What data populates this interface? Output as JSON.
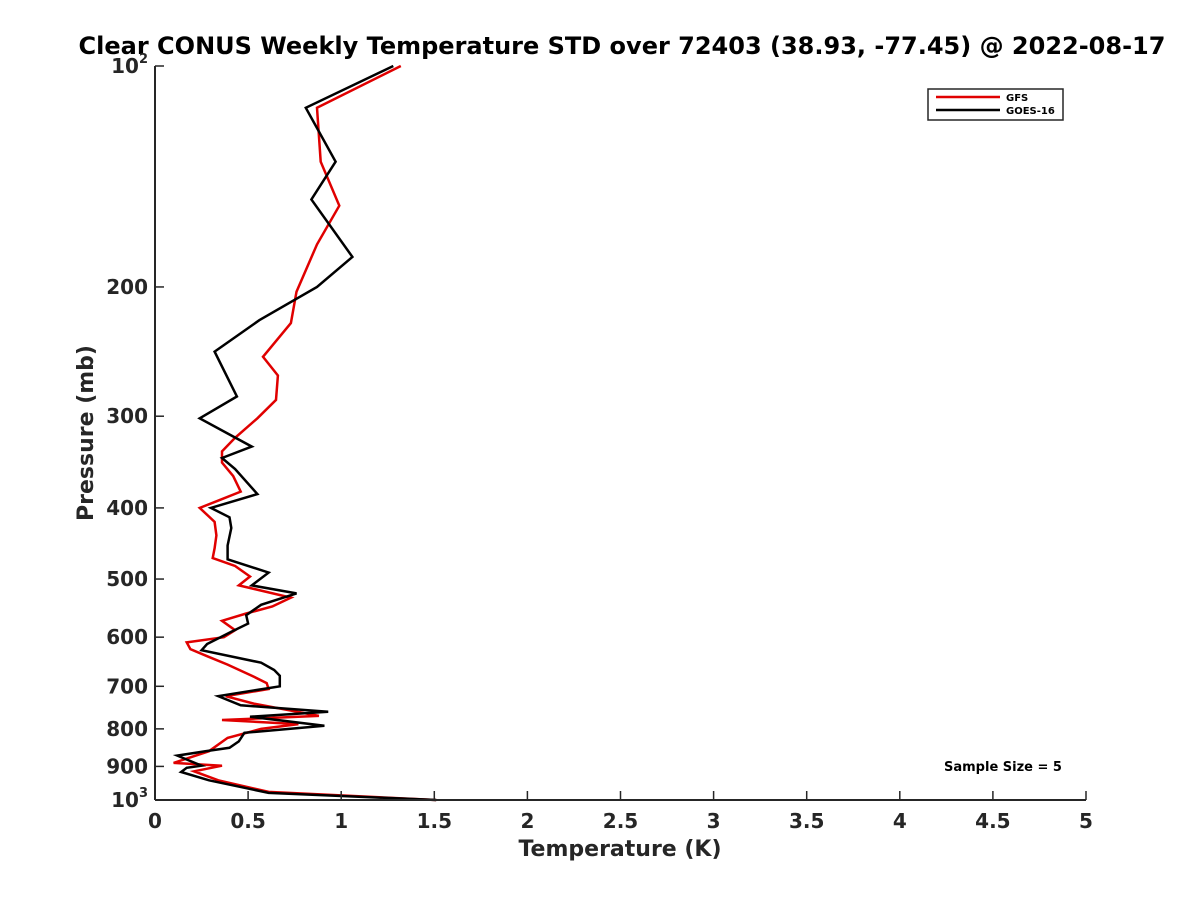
{
  "chart_data": {
    "type": "line",
    "title": "Clear CONUS Weekly Temperature STD over 72403 (38.93, -77.45) @ 2022-08-17",
    "xlabel": "Temperature (K)",
    "ylabel": "Pressure (mb)",
    "xlim": [
      0,
      5
    ],
    "ylim": [
      100,
      1000
    ],
    "y_scale": "log",
    "y_reversed": true,
    "grid": false,
    "legend_position": "top-right",
    "x_ticks": [
      {
        "value": 0,
        "label": "0"
      },
      {
        "value": 0.5,
        "label": "0.5"
      },
      {
        "value": 1,
        "label": "1"
      },
      {
        "value": 1.5,
        "label": "1.5"
      },
      {
        "value": 2,
        "label": "2"
      },
      {
        "value": 2.5,
        "label": "2.5"
      },
      {
        "value": 3,
        "label": "3"
      },
      {
        "value": 3.5,
        "label": "3.5"
      },
      {
        "value": 4,
        "label": "4"
      },
      {
        "value": 4.5,
        "label": "4.5"
      },
      {
        "value": 5,
        "label": "5"
      }
    ],
    "y_ticks": [
      {
        "value": 100,
        "base": "10",
        "exp": "2"
      },
      {
        "value": 200,
        "base": "200",
        "exp": ""
      },
      {
        "value": 300,
        "base": "300",
        "exp": ""
      },
      {
        "value": 400,
        "base": "400",
        "exp": ""
      },
      {
        "value": 500,
        "base": "500",
        "exp": ""
      },
      {
        "value": 600,
        "base": "600",
        "exp": ""
      },
      {
        "value": 700,
        "base": "700",
        "exp": ""
      },
      {
        "value": 800,
        "base": "800",
        "exp": ""
      },
      {
        "value": 900,
        "base": "900",
        "exp": ""
      },
      {
        "value": 1000,
        "base": "10",
        "exp": "3"
      }
    ],
    "series": [
      {
        "name": "GFS",
        "color": "#e00000",
        "points": [
          [
            1.32,
            100
          ],
          [
            0.87,
            114
          ],
          [
            0.89,
            135
          ],
          [
            0.99,
            155
          ],
          [
            0.87,
            175
          ],
          [
            0.76,
            203
          ],
          [
            0.73,
            224
          ],
          [
            0.58,
            249
          ],
          [
            0.66,
            264
          ],
          [
            0.65,
            285
          ],
          [
            0.55,
            302
          ],
          [
            0.43,
            321
          ],
          [
            0.36,
            335
          ],
          [
            0.36,
            347
          ],
          [
            0.42,
            362
          ],
          [
            0.46,
            380
          ],
          [
            0.35,
            390
          ],
          [
            0.24,
            400
          ],
          [
            0.32,
            418
          ],
          [
            0.33,
            436
          ],
          [
            0.32,
            454
          ],
          [
            0.31,
            468
          ],
          [
            0.43,
            480
          ],
          [
            0.51,
            496
          ],
          [
            0.45,
            510
          ],
          [
            0.73,
            530
          ],
          [
            0.63,
            545
          ],
          [
            0.49,
            557
          ],
          [
            0.36,
            570
          ],
          [
            0.43,
            587
          ],
          [
            0.37,
            600
          ],
          [
            0.17,
            610
          ],
          [
            0.19,
            623
          ],
          [
            0.28,
            637
          ],
          [
            0.39,
            654
          ],
          [
            0.52,
            677
          ],
          [
            0.6,
            693
          ],
          [
            0.61,
            706
          ],
          [
            0.38,
            722
          ],
          [
            0.53,
            739
          ],
          [
            0.88,
            768
          ],
          [
            0.36,
            778
          ],
          [
            0.77,
            788
          ],
          [
            0.57,
            800
          ],
          [
            0.39,
            823
          ],
          [
            0.29,
            858
          ],
          [
            0.1,
            890
          ],
          [
            0.36,
            898
          ],
          [
            0.21,
            914
          ],
          [
            0.34,
            940
          ],
          [
            0.61,
            975
          ],
          [
            1.51,
            1000
          ]
        ]
      },
      {
        "name": "GOES-16",
        "color": "#000000",
        "points": [
          [
            1.28,
            100
          ],
          [
            0.81,
            114
          ],
          [
            0.97,
            135
          ],
          [
            0.84,
            152
          ],
          [
            1.06,
            182
          ],
          [
            0.87,
            200
          ],
          [
            0.56,
            222
          ],
          [
            0.32,
            245
          ],
          [
            0.44,
            282
          ],
          [
            0.24,
            302
          ],
          [
            0.52,
            330
          ],
          [
            0.36,
            342
          ],
          [
            0.43,
            354
          ],
          [
            0.55,
            383
          ],
          [
            0.3,
            400
          ],
          [
            0.4,
            412
          ],
          [
            0.41,
            426
          ],
          [
            0.39,
            450
          ],
          [
            0.39,
            470
          ],
          [
            0.61,
            490
          ],
          [
            0.52,
            510
          ],
          [
            0.76,
            523
          ],
          [
            0.57,
            542
          ],
          [
            0.49,
            560
          ],
          [
            0.5,
            575
          ],
          [
            0.41,
            590
          ],
          [
            0.28,
            613
          ],
          [
            0.25,
            625
          ],
          [
            0.57,
            650
          ],
          [
            0.64,
            665
          ],
          [
            0.67,
            677
          ],
          [
            0.67,
            700
          ],
          [
            0.34,
            722
          ],
          [
            0.46,
            743
          ],
          [
            0.93,
            758
          ],
          [
            0.51,
            770
          ],
          [
            0.91,
            792
          ],
          [
            0.48,
            810
          ],
          [
            0.45,
            832
          ],
          [
            0.4,
            849
          ],
          [
            0.27,
            858
          ],
          [
            0.12,
            870
          ],
          [
            0.25,
            898
          ],
          [
            0.17,
            904
          ],
          [
            0.14,
            916
          ],
          [
            0.29,
            940
          ],
          [
            0.61,
            978
          ],
          [
            1.51,
            1000
          ]
        ]
      }
    ],
    "annotations": [
      "Sample Size = 5"
    ]
  }
}
